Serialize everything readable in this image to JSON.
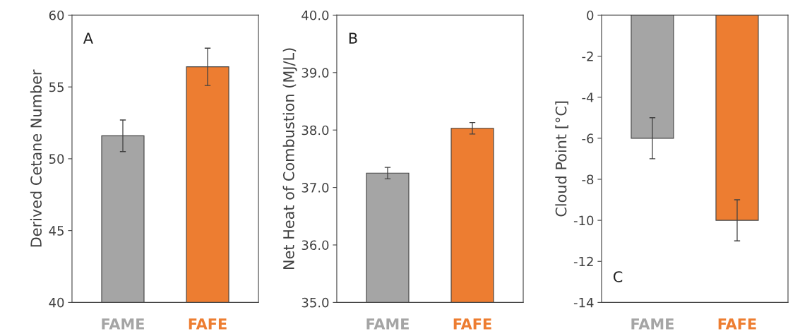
{
  "chart_data": [
    {
      "type": "bar",
      "categories": [
        "FAME",
        "FAFE"
      ],
      "values": [
        51.6,
        56.4
      ],
      "colors": [
        "#a5a5a5",
        "#ed7d31"
      ],
      "errors": [
        1.1,
        1.3
      ],
      "ylabel": "Derived Cetane Number",
      "ylim": [
        40,
        60
      ],
      "yticks": [
        40,
        45,
        50,
        55,
        60
      ],
      "annotations": [
        "A"
      ]
    },
    {
      "type": "bar",
      "categories": [
        "FAME",
        "FAFE"
      ],
      "values": [
        37.25,
        38.03
      ],
      "colors": [
        "#a5a5a5",
        "#ed7d31"
      ],
      "errors": [
        0.1,
        0.1
      ],
      "ylabel": "Net Heat of Combustion (MJ/L)",
      "ylim": [
        35,
        40
      ],
      "yticks": [
        {
          "value": 35,
          "label": "35.0"
        },
        {
          "value": 36,
          "label": "36.0"
        },
        {
          "value": 37,
          "label": "37.0"
        },
        {
          "value": 38,
          "label": "38.0"
        },
        {
          "value": 39,
          "label": "39.0"
        },
        {
          "value": 40,
          "label": "40.0"
        }
      ],
      "annotations": [
        "B"
      ]
    },
    {
      "type": "bar",
      "categories": [
        "FAME",
        "FAFE"
      ],
      "values": [
        -6,
        -10
      ],
      "colors": [
        "#a5a5a5",
        "#ed7d31"
      ],
      "errors": [
        1,
        1
      ],
      "ylabel": "Cloud Point [°C]",
      "ylim": [
        -14,
        0
      ],
      "yticks": [
        -14,
        -12,
        -10,
        -8,
        -6,
        -4,
        -2,
        0
      ],
      "annotations": [
        "C"
      ]
    }
  ]
}
